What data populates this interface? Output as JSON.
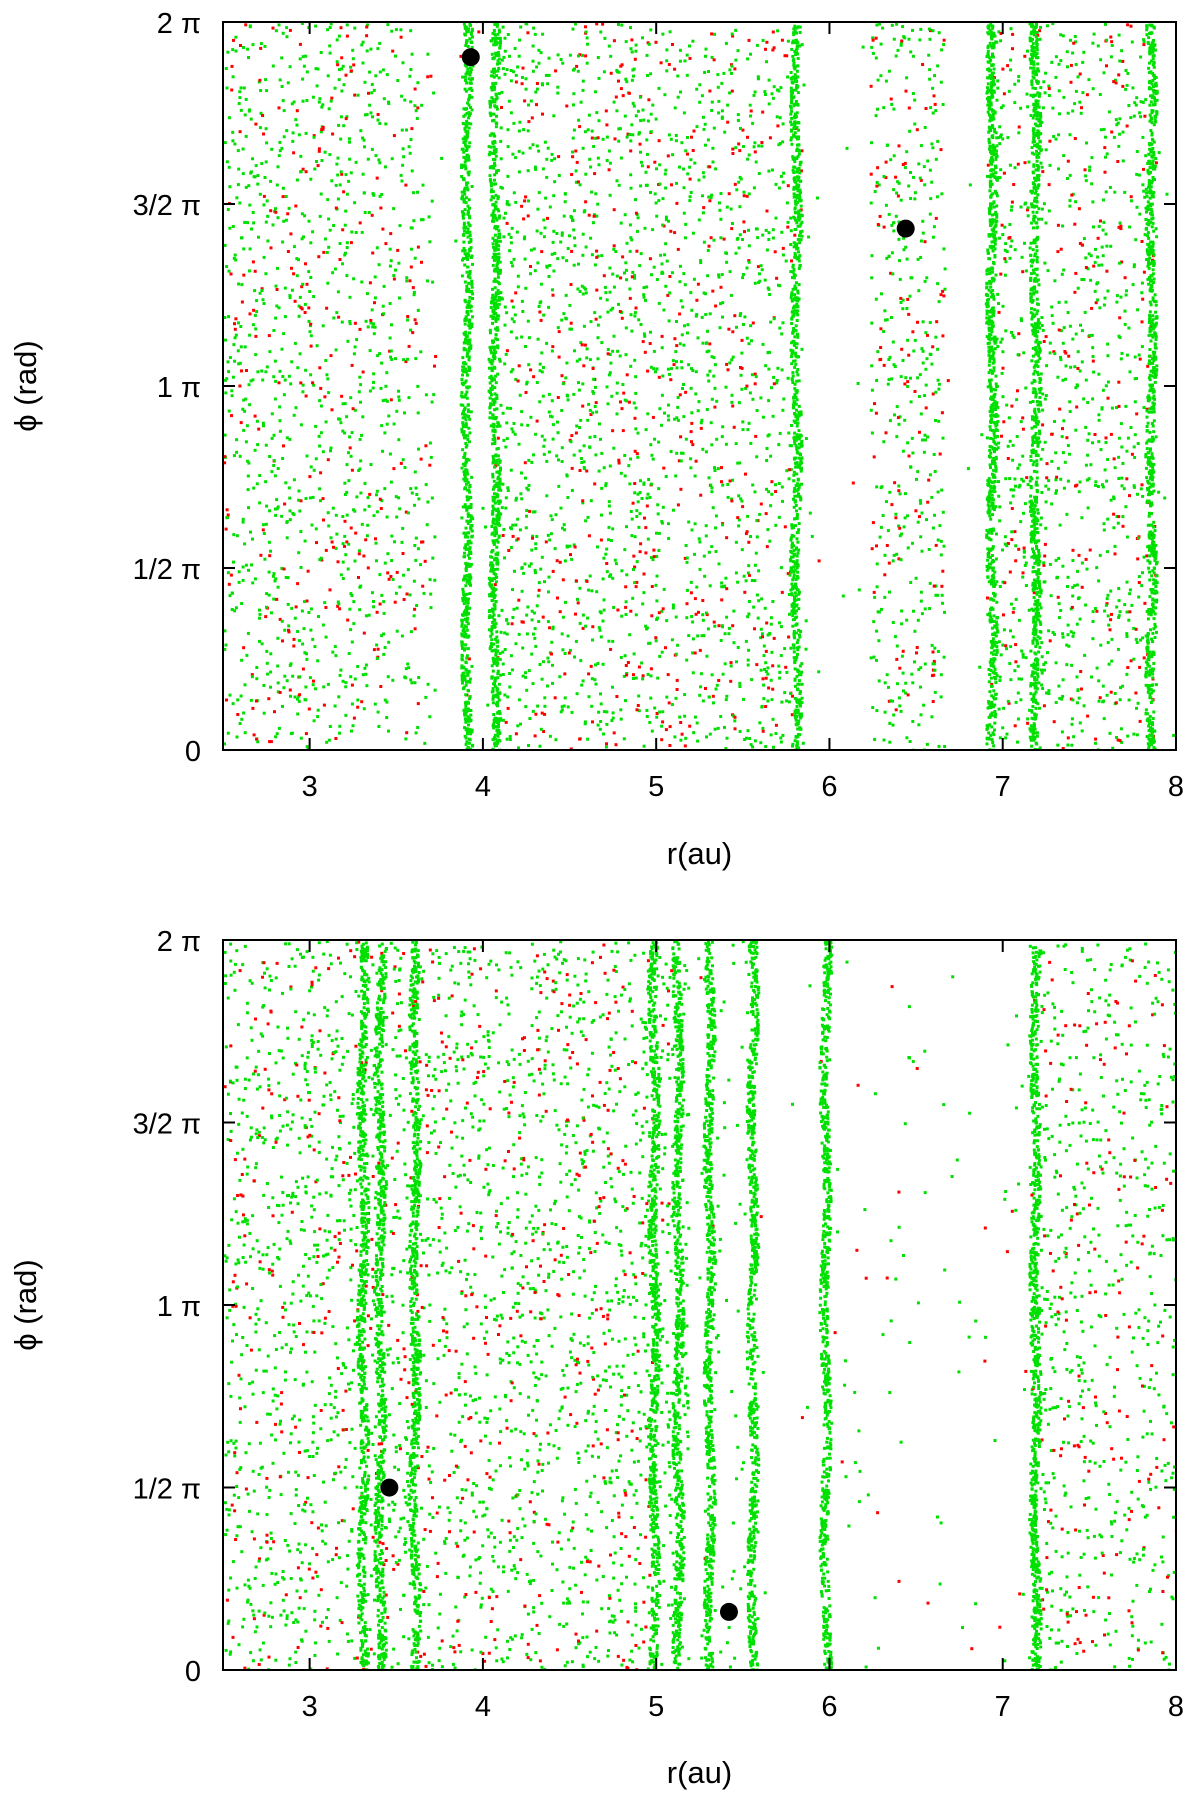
{
  "chart_data": [
    {
      "type": "scatter",
      "xlabel": "r(au)",
      "ylabel": "ϕ (rad)",
      "xlim": [
        2.5,
        8
      ],
      "ylim": [
        0,
        6.2832
      ],
      "xticks": [
        3,
        4,
        5,
        6,
        7,
        8
      ],
      "xtick_labels": [
        "3",
        "4",
        "5",
        "6",
        "7",
        "8"
      ],
      "yticks": [
        0,
        1.5708,
        3.1416,
        4.7124,
        6.2832
      ],
      "ytick_labels": [
        "0",
        "1/2 π",
        "1 π",
        "3/2 π",
        "2 π"
      ],
      "grid": false,
      "colors": {
        "primary": "#00e000",
        "secondary": "#ff0000",
        "marker": "#000000"
      },
      "marked_points": [
        {
          "x": 3.93,
          "y": 5.98
        },
        {
          "x": 6.44,
          "y": 4.5
        }
      ],
      "point_density": [
        {
          "x": [
            2.5,
            3.62
          ],
          "density": 1.0
        },
        {
          "x": [
            3.62,
            3.72
          ],
          "density": 0.45
        },
        {
          "x": [
            3.72,
            3.87
          ],
          "density": 0.02
        },
        {
          "x": [
            3.87,
            3.93
          ],
          "density": 0.9,
          "tone": "green"
        },
        {
          "x": [
            3.93,
            4.04
          ],
          "density": 0.05
        },
        {
          "x": [
            4.04,
            4.12
          ],
          "density": 1.5,
          "tone": "green"
        },
        {
          "x": [
            4.12,
            5.8
          ],
          "density": 1.1
        },
        {
          "x": [
            5.8,
            5.86
          ],
          "density": 0.35
        },
        {
          "x": [
            5.86,
            6.23
          ],
          "density": 0.03
        },
        {
          "x": [
            6.23,
            6.66
          ],
          "density": 1.0
        },
        {
          "x": [
            6.66,
            6.9
          ],
          "density": 0.02
        },
        {
          "x": [
            6.9,
            6.98
          ],
          "density": 1.6,
          "tone": "green"
        },
        {
          "x": [
            6.98,
            7.15
          ],
          "density": 1.0
        },
        {
          "x": [
            7.15,
            7.22
          ],
          "density": 1.6,
          "tone": "green"
        },
        {
          "x": [
            7.22,
            7.88
          ],
          "density": 1.0
        },
        {
          "x": [
            7.88,
            8.0
          ],
          "density": 0.04
        }
      ],
      "dense_lines": [
        3.9,
        4.06,
        5.8,
        6.93,
        7.18,
        7.85
      ]
    },
    {
      "type": "scatter",
      "xlabel": "r(au)",
      "ylabel": "ϕ (rad)",
      "xlim": [
        2.5,
        8
      ],
      "ylim": [
        0,
        6.2832
      ],
      "xticks": [
        3,
        4,
        5,
        6,
        7,
        8
      ],
      "xtick_labels": [
        "3",
        "4",
        "5",
        "6",
        "7",
        "8"
      ],
      "yticks": [
        0,
        1.5708,
        3.1416,
        4.7124,
        6.2832
      ],
      "ytick_labels": [
        "0",
        "1/2 π",
        "1 π",
        "3/2 π",
        "2 π"
      ],
      "grid": false,
      "colors": {
        "primary": "#00e000",
        "secondary": "#ff0000",
        "marker": "#000000"
      },
      "marked_points": [
        {
          "x": 3.46,
          "y": 1.57
        },
        {
          "x": 5.42,
          "y": 0.5
        }
      ],
      "point_density": [
        {
          "x": [
            2.5,
            4.95
          ],
          "density": 1.0
        },
        {
          "x": [
            4.95,
            5.18
          ],
          "density": 0.9,
          "tone": "green"
        },
        {
          "x": [
            5.18,
            5.28
          ],
          "density": 0.08
        },
        {
          "x": [
            5.28,
            5.58
          ],
          "density": 0.25,
          "tone": "green"
        },
        {
          "x": [
            5.58,
            5.96
          ],
          "density": 0.02
        },
        {
          "x": [
            5.96,
            7.15
          ],
          "density": 0.07
        },
        {
          "x": [
            7.15,
            7.22
          ],
          "density": 1.5,
          "tone": "green"
        },
        {
          "x": [
            7.22,
            8.0
          ],
          "density": 0.8
        }
      ],
      "dense_lines": [
        3.3,
        3.4,
        3.6,
        4.98,
        5.12,
        5.3,
        5.55,
        5.97,
        7.18
      ]
    }
  ]
}
